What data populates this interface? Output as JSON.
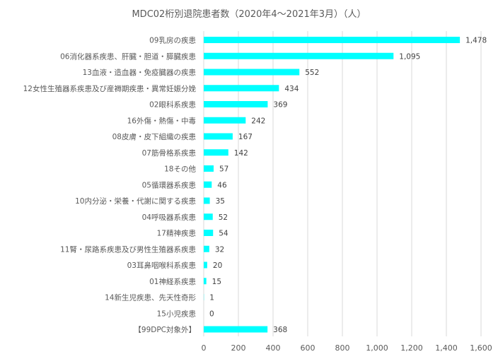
{
  "chart_data": {
    "type": "bar",
    "orientation": "horizontal",
    "title": "MDC02桁別退院患者数（2020年4～2021年3月）（人）",
    "categories": [
      "09乳房の疾患",
      "06消化器系疾患、肝臓・胆道・膵臓疾患",
      "13血液・造血器・免疫臓器の疾患",
      "12女性生殖器系疾患及び産褥期疾患・異常妊娠分娩",
      "02眼科系疾患",
      "16外傷・熱傷・中毒",
      "08皮膚・皮下組織の疾患",
      "07筋骨格系疾患",
      "18その他",
      "05循環器系疾患",
      "10内分泌・栄養・代謝に関する疾患",
      "04呼吸器系疾患",
      "17精神疾患",
      "11腎・尿路系疾患及び男性生殖器系疾患",
      "03耳鼻咽喉科系疾患",
      "01神経系疾患",
      "14新生児疾患、先天性奇形",
      "15小児疾患",
      "【99DPC対象外】"
    ],
    "values": [
      1478,
      1095,
      552,
      434,
      369,
      242,
      167,
      142,
      57,
      46,
      35,
      52,
      54,
      32,
      20,
      15,
      1,
      0,
      368
    ],
    "value_labels": [
      "1,478",
      "1,095",
      "552",
      "434",
      "369",
      "242",
      "167",
      "142",
      "57",
      "46",
      "35",
      "52",
      "54",
      "32",
      "20",
      "15",
      "1",
      "0",
      "368"
    ],
    "xlim": [
      0,
      1600
    ],
    "x_ticks": [
      0,
      200,
      400,
      600,
      800,
      1000,
      1200,
      1400,
      1600
    ],
    "x_tick_labels": [
      "0",
      "200",
      "400",
      "600",
      "800",
      "1,000",
      "1,200",
      "1,400",
      "1,600"
    ],
    "bar_color": "#00FFFF",
    "grid": true,
    "legend": "none"
  }
}
